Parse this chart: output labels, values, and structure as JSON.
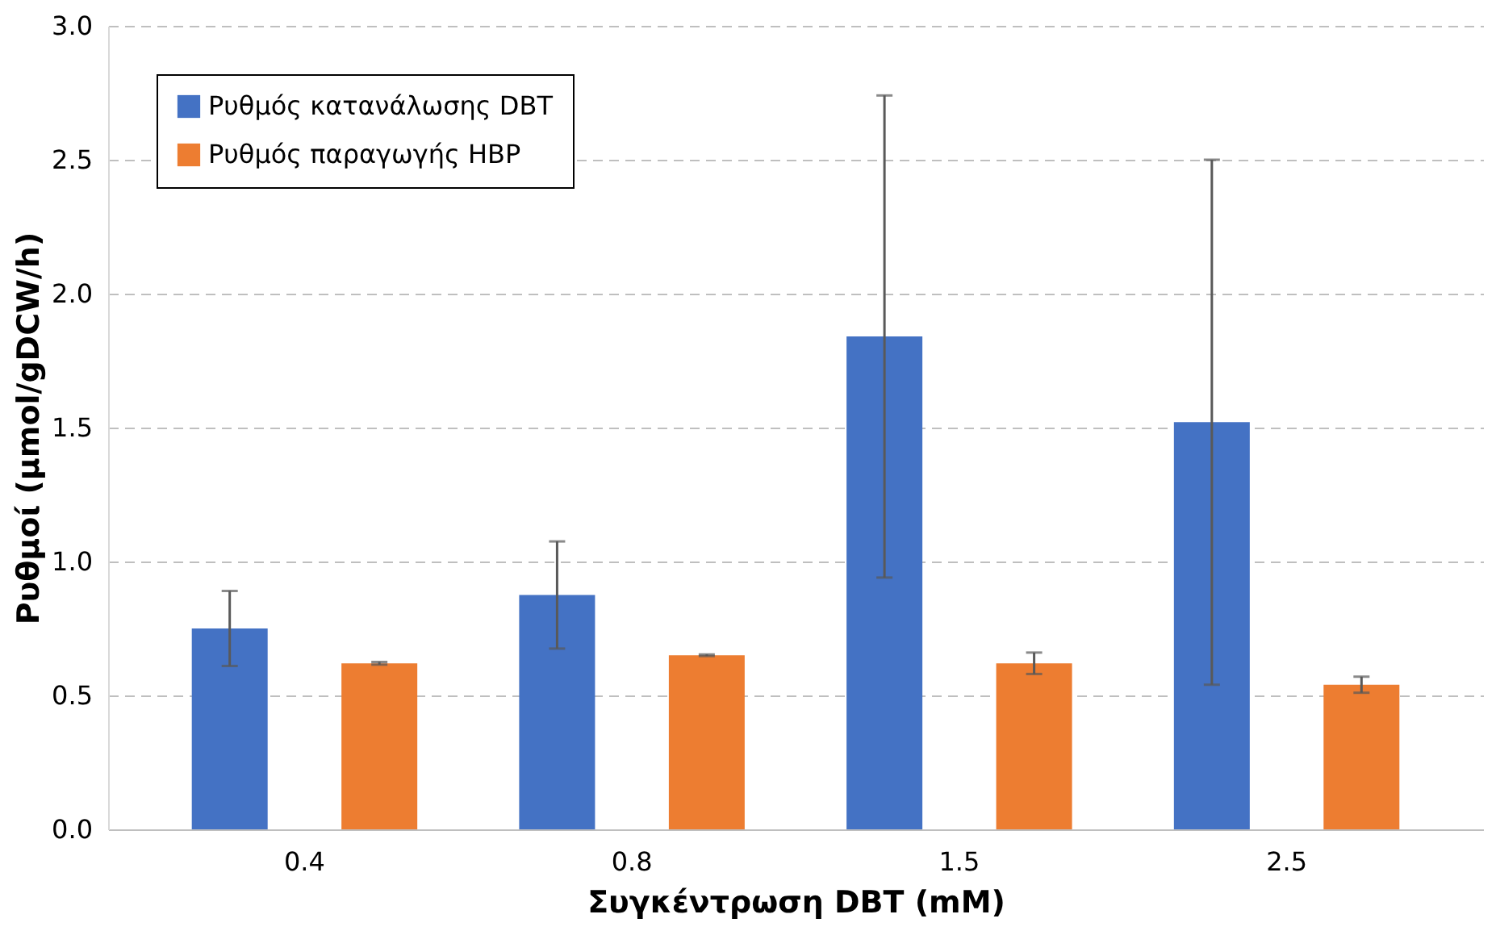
{
  "chart_data": {
    "type": "bar",
    "xlabel": "Συγκέντρωση DBT (mM)",
    "ylabel": "Ρυθμοί (μmol/gDCW/h)",
    "categories": [
      "0.4",
      "0.8",
      "1.5",
      "2.5"
    ],
    "series": [
      {
        "name": "Ρυθμός κατανάλωσης DBT",
        "color": "#4472c4",
        "values": [
          0.75,
          0.875,
          1.84,
          1.52
        ],
        "errors": [
          0.14,
          0.2,
          0.9,
          0.98
        ]
      },
      {
        "name": "Ρυθμός παραγωγής HBP",
        "color": "#ed7d31",
        "values": [
          0.62,
          0.65,
          0.62,
          0.54
        ],
        "errors": [
          0.005,
          0.003,
          0.04,
          0.03
        ]
      }
    ],
    "ylim": [
      0,
      3
    ],
    "yticks": [
      {
        "value": 0,
        "label": "0.0"
      },
      {
        "value": 0.5,
        "label": "0.5"
      },
      {
        "value": 1,
        "label": "1.0"
      },
      {
        "value": 1.5,
        "label": "1.5"
      },
      {
        "value": 2,
        "label": "2.0"
      },
      {
        "value": 2.5,
        "label": "2.5"
      },
      {
        "value": 3,
        "label": "3.0"
      }
    ],
    "grid": "y",
    "legend": "top left"
  }
}
